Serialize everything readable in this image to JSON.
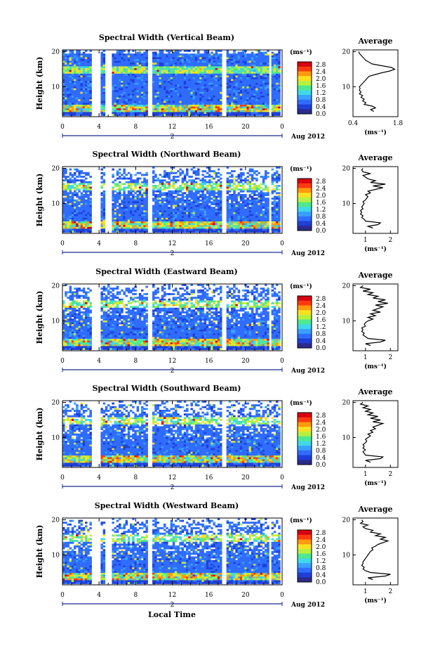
{
  "figure": {
    "xlabel": "Local Time",
    "date_label": "Aug 2012",
    "date_marker": "2",
    "ylabel": "Height (km)",
    "avg_title": "Average",
    "avg_xlabel": "(ms⁻¹)",
    "colorbar_unit": "(ms⁻¹)",
    "colorbar_ticks": [
      "2.8",
      "2.4",
      "2.0",
      "1.6",
      "1.2",
      "0.8",
      "0.4",
      "0.0"
    ],
    "colorscale": [
      "#2b2b8c",
      "#1f3fd6",
      "#2f6cff",
      "#3aa0ff",
      "#40d8e8",
      "#50e890",
      "#b8f040",
      "#ffe020",
      "#ff9a10",
      "#ff3a10",
      "#d80010"
    ]
  },
  "chart_data": [
    {
      "type": "heatmap",
      "title": "Spectral Width (Vertical Beam)",
      "xlabel": "Local Time",
      "ylabel": "Height (km)",
      "x_ticks": [
        "0",
        "4",
        "8",
        "12",
        "16",
        "20",
        "0"
      ],
      "y_ticks": [
        "20",
        "10"
      ],
      "xlim": [
        0,
        24
      ],
      "ylim": [
        1.5,
        20.5
      ],
      "zlim": [
        0.0,
        3.0
      ],
      "z_unit": "ms⁻¹",
      "gaps": [
        [
          3.1,
          4.1
        ],
        [
          4.7,
          5.5
        ],
        [
          9.4,
          9.9
        ],
        [
          17.5,
          18.0
        ],
        [
          22.5,
          22.9
        ]
      ],
      "average_profile": {
        "title": "Average",
        "xlabel": "(ms⁻¹)",
        "x_ticks": [
          "0.4",
          "1.8"
        ],
        "y_ticks": [
          "20",
          "10"
        ],
        "xlim": [
          0.4,
          1.8
        ],
        "points": [
          [
            1.05,
            3.0
          ],
          [
            0.95,
            3.5
          ],
          [
            1.1,
            4.0
          ],
          [
            1.0,
            4.5
          ],
          [
            0.75,
            5.0
          ],
          [
            0.8,
            5.5
          ],
          [
            0.7,
            6.0
          ],
          [
            0.75,
            6.5
          ],
          [
            0.65,
            7.0
          ],
          [
            0.7,
            7.5
          ],
          [
            0.6,
            8.0
          ],
          [
            0.65,
            8.5
          ],
          [
            0.6,
            9.0
          ],
          [
            0.62,
            9.5
          ],
          [
            0.6,
            10.0
          ],
          [
            0.65,
            10.5
          ],
          [
            0.7,
            11.0
          ],
          [
            0.75,
            11.5
          ],
          [
            0.8,
            12.0
          ],
          [
            0.85,
            12.5
          ],
          [
            0.9,
            13.0
          ],
          [
            1.1,
            13.5
          ],
          [
            1.3,
            14.0
          ],
          [
            1.55,
            14.5
          ],
          [
            1.7,
            15.0
          ],
          [
            1.6,
            15.5
          ],
          [
            1.3,
            16.0
          ],
          [
            1.0,
            16.5
          ],
          [
            0.9,
            17.0
          ],
          [
            0.8,
            17.5
          ],
          [
            0.75,
            18.0
          ],
          [
            0.7,
            18.5
          ],
          [
            0.65,
            19.0
          ],
          [
            0.6,
            19.5
          ],
          [
            0.58,
            20.0
          ]
        ]
      }
    },
    {
      "type": "heatmap",
      "title": "Spectral Width (Northward Beam)",
      "xlabel": "Local Time",
      "ylabel": "Height (km)",
      "x_ticks": [
        "0",
        "4",
        "8",
        "12",
        "16",
        "20",
        "0"
      ],
      "y_ticks": [
        "20",
        "10"
      ],
      "xlim": [
        0,
        24
      ],
      "ylim": [
        1.5,
        20.5
      ],
      "zlim": [
        0.0,
        3.0
      ],
      "z_unit": "ms⁻¹",
      "gaps": [
        [
          3.1,
          4.1
        ],
        [
          4.7,
          5.5
        ],
        [
          9.4,
          9.9
        ],
        [
          17.5,
          18.0
        ],
        [
          22.5,
          22.9
        ]
      ],
      "average_profile": {
        "title": "Average",
        "xlabel": "(ms⁻¹)",
        "x_ticks": [
          "1",
          "2"
        ],
        "y_ticks": [
          "20",
          "10"
        ],
        "xlim": [
          0.5,
          2.3
        ],
        "points": [
          [
            1.3,
            3.0
          ],
          [
            1.1,
            3.5
          ],
          [
            1.5,
            4.0
          ],
          [
            1.6,
            4.5
          ],
          [
            1.0,
            5.0
          ],
          [
            0.95,
            5.5
          ],
          [
            0.85,
            6.0
          ],
          [
            0.9,
            6.5
          ],
          [
            0.8,
            7.0
          ],
          [
            0.85,
            7.5
          ],
          [
            0.8,
            8.0
          ],
          [
            0.9,
            8.5
          ],
          [
            0.85,
            9.0
          ],
          [
            0.9,
            9.5
          ],
          [
            0.95,
            10.0
          ],
          [
            0.9,
            10.5
          ],
          [
            1.0,
            11.0
          ],
          [
            1.05,
            11.5
          ],
          [
            1.1,
            12.0
          ],
          [
            1.0,
            12.5
          ],
          [
            1.2,
            13.0
          ],
          [
            1.1,
            13.5
          ],
          [
            1.4,
            14.0
          ],
          [
            1.7,
            14.5
          ],
          [
            1.3,
            15.0
          ],
          [
            1.8,
            15.5
          ],
          [
            1.2,
            16.0
          ],
          [
            1.4,
            16.5
          ],
          [
            1.1,
            17.0
          ],
          [
            1.0,
            17.5
          ],
          [
            0.9,
            18.0
          ],
          [
            1.2,
            18.5
          ],
          [
            0.9,
            19.0
          ],
          [
            0.85,
            19.5
          ],
          [
            0.9,
            20.0
          ]
        ]
      }
    },
    {
      "type": "heatmap",
      "title": "Spectral Width (Eastward Beam)",
      "xlabel": "Local Time",
      "ylabel": "Height (km)",
      "x_ticks": [
        "0",
        "4",
        "8",
        "12",
        "16",
        "20",
        "0"
      ],
      "y_ticks": [
        "20",
        "10"
      ],
      "xlim": [
        0,
        24
      ],
      "ylim": [
        1.5,
        20.5
      ],
      "zlim": [
        0.0,
        3.0
      ],
      "z_unit": "ms⁻¹",
      "gaps": [
        [
          3.1,
          4.1
        ],
        [
          9.4,
          9.9
        ],
        [
          17.5,
          18.0
        ],
        [
          22.5,
          22.9
        ]
      ],
      "average_profile": {
        "title": "Average",
        "xlabel": "(ms⁻¹)",
        "x_ticks": [
          "1",
          "2"
        ],
        "y_ticks": [
          "20",
          "10"
        ],
        "xlim": [
          0.5,
          2.3
        ],
        "points": [
          [
            1.2,
            3.0
          ],
          [
            1.0,
            3.5
          ],
          [
            1.6,
            4.0
          ],
          [
            1.8,
            4.5
          ],
          [
            1.1,
            5.0
          ],
          [
            1.0,
            5.5
          ],
          [
            0.9,
            6.0
          ],
          [
            0.95,
            6.5
          ],
          [
            0.85,
            7.0
          ],
          [
            0.9,
            7.5
          ],
          [
            0.85,
            8.0
          ],
          [
            1.0,
            8.5
          ],
          [
            0.95,
            9.0
          ],
          [
            1.0,
            9.5
          ],
          [
            1.1,
            10.0
          ],
          [
            1.3,
            10.5
          ],
          [
            1.1,
            11.0
          ],
          [
            1.4,
            11.5
          ],
          [
            1.2,
            12.0
          ],
          [
            1.6,
            12.5
          ],
          [
            1.3,
            13.0
          ],
          [
            1.5,
            13.5
          ],
          [
            1.7,
            14.0
          ],
          [
            1.4,
            14.5
          ],
          [
            1.9,
            15.0
          ],
          [
            1.5,
            15.5
          ],
          [
            1.8,
            16.0
          ],
          [
            1.3,
            16.5
          ],
          [
            1.5,
            17.0
          ],
          [
            1.1,
            17.5
          ],
          [
            1.3,
            18.0
          ],
          [
            0.9,
            18.5
          ],
          [
            1.2,
            19.0
          ],
          [
            0.8,
            19.5
          ],
          [
            0.9,
            20.0
          ]
        ]
      }
    },
    {
      "type": "heatmap",
      "title": "Spectral Width (Southward Beam)",
      "xlabel": "Local Time",
      "ylabel": "Height (km)",
      "x_ticks": [
        "0",
        "4",
        "8",
        "12",
        "16",
        "20",
        "0"
      ],
      "y_ticks": [
        "20",
        "10"
      ],
      "xlim": [
        0,
        24
      ],
      "ylim": [
        1.5,
        20.5
      ],
      "zlim": [
        0.0,
        3.0
      ],
      "z_unit": "ms⁻¹",
      "gaps": [
        [
          3.1,
          4.1
        ],
        [
          9.4,
          9.9
        ],
        [
          17.5,
          18.0
        ]
      ],
      "average_profile": {
        "title": "Average",
        "xlabel": "(ms⁻¹)",
        "x_ticks": [
          "1",
          "2"
        ],
        "y_ticks": [
          "20",
          "10"
        ],
        "xlim": [
          0.5,
          2.3
        ],
        "points": [
          [
            1.2,
            3.0
          ],
          [
            1.0,
            3.5
          ],
          [
            1.6,
            4.0
          ],
          [
            1.7,
            4.5
          ],
          [
            1.0,
            5.0
          ],
          [
            0.95,
            5.5
          ],
          [
            0.9,
            6.0
          ],
          [
            1.0,
            6.5
          ],
          [
            0.9,
            7.0
          ],
          [
            0.95,
            7.5
          ],
          [
            0.9,
            8.0
          ],
          [
            1.0,
            8.5
          ],
          [
            1.05,
            9.0
          ],
          [
            1.0,
            9.5
          ],
          [
            1.1,
            10.0
          ],
          [
            1.2,
            10.5
          ],
          [
            1.1,
            11.0
          ],
          [
            1.3,
            11.5
          ],
          [
            1.2,
            12.0
          ],
          [
            1.4,
            12.5
          ],
          [
            1.3,
            13.0
          ],
          [
            1.5,
            13.5
          ],
          [
            1.7,
            14.0
          ],
          [
            1.3,
            14.5
          ],
          [
            1.6,
            15.0
          ],
          [
            1.2,
            15.5
          ],
          [
            1.5,
            16.0
          ],
          [
            1.1,
            16.5
          ],
          [
            1.3,
            17.0
          ],
          [
            1.0,
            17.5
          ],
          [
            1.2,
            18.0
          ],
          [
            0.9,
            18.5
          ],
          [
            1.1,
            19.0
          ],
          [
            0.8,
            19.5
          ],
          [
            0.9,
            20.0
          ]
        ]
      }
    },
    {
      "type": "heatmap",
      "title": "Spectral Width (Westward Beam)",
      "xlabel": "Local Time",
      "ylabel": "Height (km)",
      "x_ticks": [
        "0",
        "4",
        "8",
        "12",
        "16",
        "20",
        "0"
      ],
      "y_ticks": [
        "20",
        "10"
      ],
      "xlim": [
        0,
        24
      ],
      "ylim": [
        1.5,
        20.5
      ],
      "zlim": [
        0.0,
        3.0
      ],
      "z_unit": "ms⁻¹",
      "gaps": [
        [
          3.1,
          4.1
        ],
        [
          4.7,
          5.5
        ],
        [
          9.4,
          9.9
        ],
        [
          17.5,
          18.0
        ],
        [
          22.5,
          22.9
        ]
      ],
      "average_profile": {
        "title": "Average",
        "xlabel": "(ms⁻¹)",
        "x_ticks": [
          "1",
          "2"
        ],
        "y_ticks": [
          "20",
          "10"
        ],
        "xlim": [
          0.5,
          2.3
        ],
        "points": [
          [
            1.3,
            3.0
          ],
          [
            1.1,
            3.5
          ],
          [
            1.8,
            4.0
          ],
          [
            2.0,
            4.5
          ],
          [
            1.2,
            5.0
          ],
          [
            1.0,
            5.5
          ],
          [
            0.9,
            6.0
          ],
          [
            0.95,
            6.5
          ],
          [
            0.85,
            7.0
          ],
          [
            0.9,
            7.5
          ],
          [
            0.9,
            8.0
          ],
          [
            0.95,
            8.5
          ],
          [
            1.0,
            9.0
          ],
          [
            1.05,
            9.5
          ],
          [
            1.1,
            10.0
          ],
          [
            1.15,
            10.5
          ],
          [
            1.2,
            11.0
          ],
          [
            1.3,
            11.5
          ],
          [
            1.25,
            12.0
          ],
          [
            1.4,
            12.5
          ],
          [
            1.5,
            13.0
          ],
          [
            1.7,
            13.5
          ],
          [
            1.9,
            14.0
          ],
          [
            1.6,
            14.5
          ],
          [
            1.8,
            15.0
          ],
          [
            1.4,
            15.5
          ],
          [
            1.6,
            16.0
          ],
          [
            1.2,
            16.5
          ],
          [
            1.3,
            17.0
          ],
          [
            1.0,
            17.5
          ],
          [
            0.9,
            18.0
          ],
          [
            1.1,
            18.5
          ],
          [
            0.8,
            19.0
          ],
          [
            0.9,
            19.5
          ],
          [
            0.85,
            20.0
          ]
        ]
      }
    }
  ]
}
